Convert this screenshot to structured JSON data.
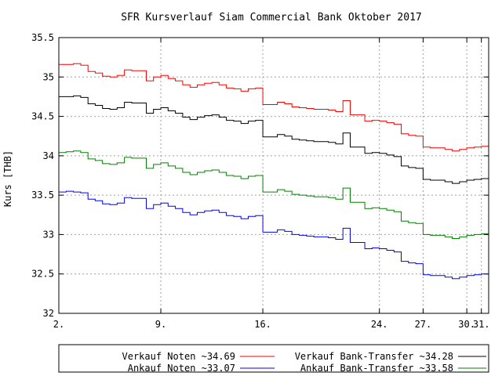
{
  "chart_data": {
    "type": "line",
    "title": "SFR Kursverlauf Siam Commercial Bank Oktober 2017",
    "xlabel": "",
    "ylabel": "Kurs [THB]",
    "ylim": [
      32,
      35.5
    ],
    "yticks": [
      "32",
      "32.5",
      "33",
      "33.5",
      "34",
      "34.5",
      "35",
      "35.5"
    ],
    "xlim": [
      2,
      31.5
    ],
    "xticks": [
      {
        "day": 2,
        "label": "2."
      },
      {
        "day": 9,
        "label": "9."
      },
      {
        "day": 16,
        "label": "16."
      },
      {
        "day": 24,
        "label": "24."
      },
      {
        "day": 27,
        "label": "27."
      },
      {
        "day": 30,
        "label": "30."
      },
      {
        "day": 31,
        "label": "31."
      }
    ],
    "grid": true,
    "legend": "bottom",
    "series": [
      {
        "name": "Verkauf Noten ~34.69",
        "color": "#ff0000",
        "x": [
          2,
          2.5,
          3,
          3.5,
          4,
          4.5,
          5,
          5.5,
          6,
          6.5,
          7,
          7.5,
          8,
          8.5,
          9,
          9.5,
          10,
          10.5,
          11,
          11.5,
          12,
          12.5,
          13,
          13.5,
          14,
          14.5,
          15,
          15.5,
          16,
          16.5,
          17,
          17.5,
          18,
          18.5,
          19,
          19.5,
          20,
          20.5,
          21,
          21.5,
          22,
          22.5,
          23,
          23.5,
          24,
          24.5,
          25,
          25.5,
          26,
          26.5,
          27,
          27.5,
          28,
          28.5,
          29,
          29.5,
          30,
          30.5,
          31,
          31.5
        ],
        "values": [
          35.16,
          35.16,
          35.17,
          35.15,
          35.07,
          35.05,
          35.01,
          35.0,
          35.02,
          35.09,
          35.08,
          35.08,
          34.95,
          35.0,
          35.02,
          34.98,
          34.95,
          34.9,
          34.87,
          34.9,
          34.92,
          34.93,
          34.9,
          34.86,
          34.85,
          34.82,
          34.85,
          34.86,
          34.65,
          34.65,
          34.68,
          34.66,
          34.62,
          34.61,
          34.6,
          34.59,
          34.59,
          34.58,
          34.56,
          34.7,
          34.52,
          34.52,
          34.44,
          34.45,
          34.44,
          34.42,
          34.4,
          34.28,
          34.26,
          34.25,
          34.11,
          34.1,
          34.1,
          34.08,
          34.06,
          34.08,
          34.1,
          34.11,
          34.12,
          34.1
        ]
      },
      {
        "name": "Verkauf Bank-Transfer ~34.28",
        "color": "#000000",
        "x": [
          2,
          2.5,
          3,
          3.5,
          4,
          4.5,
          5,
          5.5,
          6,
          6.5,
          7,
          7.5,
          8,
          8.5,
          9,
          9.5,
          10,
          10.5,
          11,
          11.5,
          12,
          12.5,
          13,
          13.5,
          14,
          14.5,
          15,
          15.5,
          16,
          16.5,
          17,
          17.5,
          18,
          18.5,
          19,
          19.5,
          20,
          20.5,
          21,
          21.5,
          22,
          22.5,
          23,
          23.5,
          24,
          24.5,
          25,
          25.5,
          26,
          26.5,
          27,
          27.5,
          28,
          28.5,
          29,
          29.5,
          30,
          30.5,
          31,
          31.5
        ],
        "values": [
          34.75,
          34.75,
          34.76,
          34.74,
          34.66,
          34.64,
          34.6,
          34.59,
          34.61,
          34.68,
          34.67,
          34.67,
          34.54,
          34.59,
          34.61,
          34.57,
          34.54,
          34.49,
          34.46,
          34.49,
          34.51,
          34.52,
          34.49,
          34.45,
          34.44,
          34.41,
          34.44,
          34.45,
          34.24,
          34.24,
          34.27,
          34.25,
          34.21,
          34.2,
          34.19,
          34.18,
          34.18,
          34.17,
          34.15,
          34.29,
          34.11,
          34.11,
          34.03,
          34.04,
          34.03,
          34.01,
          33.99,
          33.87,
          33.85,
          33.84,
          33.7,
          33.69,
          33.69,
          33.67,
          33.65,
          33.67,
          33.69,
          33.7,
          33.71,
          33.69
        ]
      },
      {
        "name": "Ankauf Noten ~33.07",
        "color": "#0000ff",
        "x": [
          2,
          2.5,
          3,
          3.5,
          4,
          4.5,
          5,
          5.5,
          6,
          6.5,
          7,
          7.5,
          8,
          8.5,
          9,
          9.5,
          10,
          10.5,
          11,
          11.5,
          12,
          12.5,
          13,
          13.5,
          14,
          14.5,
          15,
          15.5,
          16,
          16.5,
          17,
          17.5,
          18,
          18.5,
          19,
          19.5,
          20,
          20.5,
          21,
          21.5,
          22,
          22.5,
          23,
          23.5,
          24,
          24.5,
          25,
          25.5,
          26,
          26.5,
          27,
          27.5,
          28,
          28.5,
          29,
          29.5,
          30,
          30.5,
          31,
          31.5
        ],
        "values": [
          33.54,
          33.55,
          33.54,
          33.53,
          33.45,
          33.43,
          33.39,
          33.38,
          33.4,
          33.47,
          33.46,
          33.46,
          33.33,
          33.38,
          33.4,
          33.36,
          33.33,
          33.28,
          33.25,
          33.28,
          33.3,
          33.31,
          33.28,
          33.24,
          33.23,
          33.2,
          33.23,
          33.24,
          33.03,
          33.03,
          33.06,
          33.04,
          33.0,
          32.99,
          32.98,
          32.97,
          32.97,
          32.96,
          32.94,
          33.08,
          32.9,
          32.9,
          32.82,
          32.83,
          32.82,
          32.8,
          32.78,
          32.66,
          32.64,
          32.63,
          32.49,
          32.48,
          32.48,
          32.46,
          32.44,
          32.46,
          32.48,
          32.49,
          32.5,
          32.48
        ]
      },
      {
        "name": "Ankauf Bank-Transfer ~33.58",
        "color": "#008000",
        "x": [
          2,
          2.5,
          3,
          3.5,
          4,
          4.5,
          5,
          5.5,
          6,
          6.5,
          7,
          7.5,
          8,
          8.5,
          9,
          9.5,
          10,
          10.5,
          11,
          11.5,
          12,
          12.5,
          13,
          13.5,
          14,
          14.5,
          15,
          15.5,
          16,
          16.5,
          17,
          17.5,
          18,
          18.5,
          19,
          19.5,
          20,
          20.5,
          21,
          21.5,
          22,
          22.5,
          23,
          23.5,
          24,
          24.5,
          25,
          25.5,
          26,
          26.5,
          27,
          27.5,
          28,
          28.5,
          29,
          29.5,
          30,
          30.5,
          31,
          31.5
        ],
        "values": [
          34.04,
          34.05,
          34.06,
          34.04,
          33.96,
          33.94,
          33.9,
          33.89,
          33.91,
          33.98,
          33.97,
          33.97,
          33.84,
          33.89,
          33.91,
          33.87,
          33.84,
          33.79,
          33.76,
          33.79,
          33.81,
          33.82,
          33.79,
          33.75,
          33.74,
          33.71,
          33.74,
          33.75,
          33.54,
          33.54,
          33.57,
          33.55,
          33.51,
          33.5,
          33.49,
          33.48,
          33.48,
          33.47,
          33.45,
          33.59,
          33.41,
          33.41,
          33.33,
          33.34,
          33.33,
          33.31,
          33.29,
          33.17,
          33.15,
          33.14,
          33.0,
          32.99,
          32.99,
          32.97,
          32.95,
          32.97,
          32.99,
          33.0,
          33.01,
          32.99
        ]
      }
    ]
  }
}
